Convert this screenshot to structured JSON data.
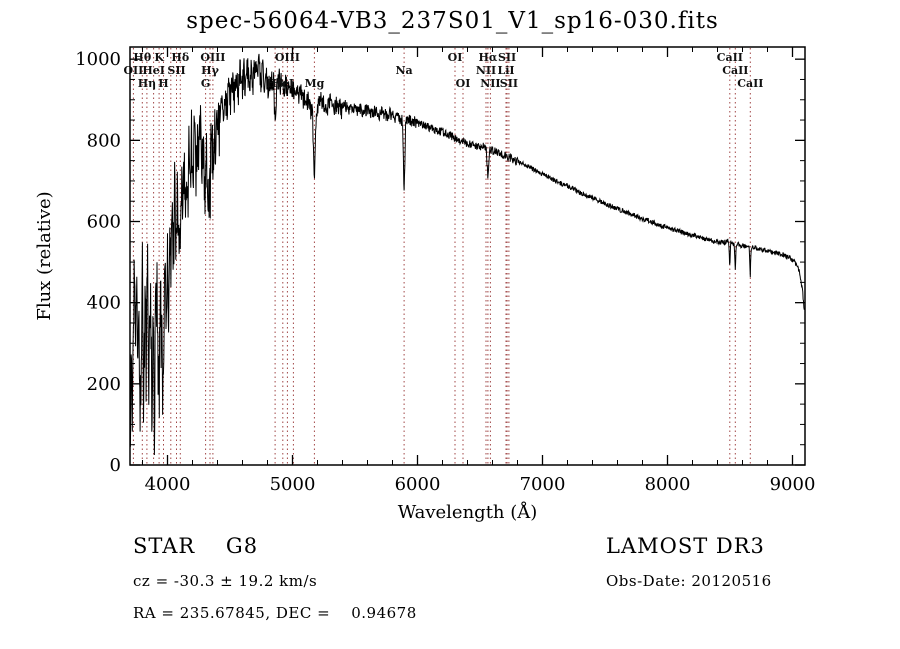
{
  "annotations": {
    "class_line": {
      "left": "STAR    G8",
      "right": "LAMOST DR3"
    },
    "info_line": {
      "left": "cz = -30.3 ± 19.2 km/s",
      "right": "Obs-Date: 20120516"
    },
    "coord_line": {
      "left": "RA = 235.67845, DEC =    0.94678"
    }
  },
  "chart_data": {
    "type": "line",
    "title": "spec-56064-VB3_237S01_V1_sp16-030.fits",
    "xlabel": "Wavelength (Å)",
    "ylabel": "Flux (relative)",
    "xlim": [
      3700,
      9100
    ],
    "ylim": [
      0,
      1030
    ],
    "xticks": [
      4000,
      5000,
      6000,
      7000,
      8000,
      9000
    ],
    "yticks": [
      0,
      200,
      400,
      600,
      800,
      1000
    ],
    "x_minor_step": 200,
    "y_minor_step": 50,
    "grid": false,
    "legend": "none",
    "line_color": "#000000",
    "marker_line_color": "#a04545",
    "spectral_lines": [
      {
        "label": "OII",
        "wavelength": 3727,
        "row": 2
      },
      {
        "label": "Hθ",
        "wavelength": 3798,
        "row": 1
      },
      {
        "label": "Hη",
        "wavelength": 3835,
        "row": 3
      },
      {
        "label": "HeI",
        "wavelength": 3889,
        "row": 2
      },
      {
        "label": "K",
        "wavelength": 3933,
        "row": 1
      },
      {
        "label": "H",
        "wavelength": 3968,
        "row": 3
      },
      {
        "label": "",
        "wavelength": 4026,
        "row": 2
      },
      {
        "label": "SII",
        "wavelength": 4072,
        "row": 2
      },
      {
        "label": "Hδ",
        "wavelength": 4102,
        "row": 1
      },
      {
        "label": "G",
        "wavelength": 4305,
        "row": 3
      },
      {
        "label": "Hγ",
        "wavelength": 4340,
        "row": 2
      },
      {
        "label": "OIII",
        "wavelength": 4363,
        "row": 1
      },
      {
        "label": "Hβ",
        "wavelength": 4861,
        "row": 3
      },
      {
        "label": "HeI",
        "wavelength": 4922,
        "row": 3
      },
      {
        "label": "OIII",
        "wavelength": 4959,
        "row": 1
      },
      {
        "label": "",
        "wavelength": 5007,
        "row": 1
      },
      {
        "label": "Mg",
        "wavelength": 5175,
        "row": 3
      },
      {
        "label": "Na",
        "wavelength": 5893,
        "row": 2
      },
      {
        "label": "OI",
        "wavelength": 6300,
        "row": 1
      },
      {
        "label": "OI",
        "wavelength": 6364,
        "row": 3
      },
      {
        "label": "NII",
        "wavelength": 6548,
        "row": 2
      },
      {
        "label": "Hα",
        "wavelength": 6563,
        "row": 1
      },
      {
        "label": "NII",
        "wavelength": 6583,
        "row": 3
      },
      {
        "label": "LiI",
        "wavelength": 6708,
        "row": 2
      },
      {
        "label": "SII",
        "wavelength": 6717,
        "row": 1
      },
      {
        "label": "SII",
        "wavelength": 6731,
        "row": 3
      },
      {
        "label": "CaII",
        "wavelength": 8498,
        "row": 1
      },
      {
        "label": "CaII",
        "wavelength": 8542,
        "row": 2
      },
      {
        "label": "CaII",
        "wavelength": 8662,
        "row": 3
      }
    ],
    "noise": {
      "seed": 12345,
      "step": 3,
      "regions": [
        {
          "from": 3700,
          "to": 4000,
          "amp": 110
        },
        {
          "from": 4000,
          "to": 4420,
          "amp": 80
        },
        {
          "from": 4420,
          "to": 4900,
          "amp": 38
        },
        {
          "from": 4900,
          "to": 5400,
          "amp": 25
        },
        {
          "from": 5400,
          "to": 6000,
          "amp": 15
        },
        {
          "from": 6000,
          "to": 6800,
          "amp": 10
        },
        {
          "from": 6800,
          "to": 9101,
          "amp": 6
        }
      ]
    },
    "spectrum": {
      "points": [
        [
          3700,
          30
        ],
        [
          3712,
          260
        ],
        [
          3722,
          120
        ],
        [
          3732,
          420
        ],
        [
          3742,
          300
        ],
        [
          3752,
          460
        ],
        [
          3762,
          180
        ],
        [
          3772,
          390
        ],
        [
          3782,
          120
        ],
        [
          3792,
          350
        ],
        [
          3800,
          470
        ],
        [
          3810,
          150
        ],
        [
          3820,
          420
        ],
        [
          3830,
          240
        ],
        [
          3840,
          500
        ],
        [
          3850,
          200
        ],
        [
          3862,
          440
        ],
        [
          3874,
          160
        ],
        [
          3886,
          360
        ],
        [
          3896,
          90
        ],
        [
          3906,
          380
        ],
        [
          3916,
          480
        ],
        [
          3926,
          220
        ],
        [
          3933,
          140
        ],
        [
          3941,
          420
        ],
        [
          3950,
          300
        ],
        [
          3960,
          240
        ],
        [
          3968,
          170
        ],
        [
          3978,
          430
        ],
        [
          3988,
          340
        ],
        [
          3998,
          520
        ],
        [
          4008,
          380
        ],
        [
          4018,
          600
        ],
        [
          4028,
          450
        ],
        [
          4038,
          640
        ],
        [
          4048,
          520
        ],
        [
          4058,
          690
        ],
        [
          4068,
          540
        ],
        [
          4078,
          700
        ],
        [
          4088,
          590
        ],
        [
          4098,
          520
        ],
        [
          4102,
          480
        ],
        [
          4112,
          680
        ],
        [
          4122,
          600
        ],
        [
          4132,
          730
        ],
        [
          4142,
          620
        ],
        [
          4152,
          760
        ],
        [
          4162,
          650
        ],
        [
          4172,
          780
        ],
        [
          4182,
          680
        ],
        [
          4192,
          800
        ],
        [
          4202,
          700
        ],
        [
          4215,
          810
        ],
        [
          4228,
          720
        ],
        [
          4240,
          830
        ],
        [
          4252,
          740
        ],
        [
          4264,
          840
        ],
        [
          4276,
          750
        ],
        [
          4288,
          820
        ],
        [
          4300,
          640
        ],
        [
          4312,
          780
        ],
        [
          4324,
          700
        ],
        [
          4340,
          660
        ],
        [
          4352,
          820
        ],
        [
          4364,
          740
        ],
        [
          4376,
          850
        ],
        [
          4388,
          780
        ],
        [
          4400,
          880
        ],
        [
          4415,
          820
        ],
        [
          4430,
          900
        ],
        [
          4445,
          850
        ],
        [
          4460,
          920
        ],
        [
          4475,
          870
        ],
        [
          4490,
          940
        ],
        [
          4505,
          890
        ],
        [
          4520,
          950
        ],
        [
          4535,
          900
        ],
        [
          4550,
          960
        ],
        [
          4565,
          910
        ],
        [
          4580,
          965
        ],
        [
          4595,
          920
        ],
        [
          4610,
          970
        ],
        [
          4625,
          930
        ],
        [
          4640,
          980
        ],
        [
          4655,
          940
        ],
        [
          4670,
          985
        ],
        [
          4685,
          945
        ],
        [
          4700,
          990
        ],
        [
          4715,
          950
        ],
        [
          4730,
          985
        ],
        [
          4745,
          945
        ],
        [
          4760,
          975
        ],
        [
          4775,
          940
        ],
        [
          4790,
          965
        ],
        [
          4805,
          935
        ],
        [
          4820,
          955
        ],
        [
          4835,
          930
        ],
        [
          4850,
          945
        ],
        [
          4861,
          830
        ],
        [
          4872,
          935
        ],
        [
          4885,
          955
        ],
        [
          4900,
          930
        ],
        [
          4915,
          950
        ],
        [
          4930,
          920
        ],
        [
          4945,
          945
        ],
        [
          4960,
          915
        ],
        [
          4975,
          940
        ],
        [
          4990,
          910
        ],
        [
          5005,
          935
        ],
        [
          5020,
          905
        ],
        [
          5035,
          925
        ],
        [
          5050,
          900
        ],
        [
          5065,
          920
        ],
        [
          5080,
          895
        ],
        [
          5095,
          915
        ],
        [
          5110,
          890
        ],
        [
          5125,
          905
        ],
        [
          5140,
          880
        ],
        [
          5160,
          860
        ],
        [
          5175,
          690
        ],
        [
          5190,
          860
        ],
        [
          5205,
          885
        ],
        [
          5220,
          900
        ],
        [
          5240,
          885
        ],
        [
          5260,
          895
        ],
        [
          5280,
          880
        ],
        [
          5300,
          895
        ],
        [
          5330,
          880
        ],
        [
          5360,
          890
        ],
        [
          5390,
          875
        ],
        [
          5420,
          888
        ],
        [
          5450,
          872
        ],
        [
          5480,
          885
        ],
        [
          5510,
          870
        ],
        [
          5540,
          880
        ],
        [
          5570,
          868
        ],
        [
          5600,
          878
        ],
        [
          5630,
          864
        ],
        [
          5660,
          874
        ],
        [
          5690,
          862
        ],
        [
          5720,
          870
        ],
        [
          5750,
          860
        ],
        [
          5780,
          866
        ],
        [
          5810,
          856
        ],
        [
          5840,
          862
        ],
        [
          5868,
          852
        ],
        [
          5880,
          845
        ],
        [
          5893,
          665
        ],
        [
          5906,
          845
        ],
        [
          5930,
          850
        ],
        [
          5960,
          845
        ],
        [
          5990,
          845
        ],
        [
          6020,
          840
        ],
        [
          6050,
          838
        ],
        [
          6080,
          834
        ],
        [
          6110,
          830
        ],
        [
          6140,
          827
        ],
        [
          6170,
          823
        ],
        [
          6200,
          820
        ],
        [
          6230,
          816
        ],
        [
          6260,
          812
        ],
        [
          6290,
          806
        ],
        [
          6320,
          802
        ],
        [
          6350,
          798
        ],
        [
          6380,
          795
        ],
        [
          6410,
          792
        ],
        [
          6440,
          788
        ],
        [
          6470,
          785
        ],
        [
          6500,
          782
        ],
        [
          6530,
          785
        ],
        [
          6550,
          780
        ],
        [
          6563,
          705
        ],
        [
          6576,
          778
        ],
        [
          6600,
          775
        ],
        [
          6630,
          772
        ],
        [
          6660,
          768
        ],
        [
          6690,
          764
        ],
        [
          6720,
          760
        ],
        [
          6750,
          756
        ],
        [
          6780,
          750
        ],
        [
          6810,
          746
        ],
        [
          6840,
          742
        ],
        [
          6870,
          737
        ],
        [
          6900,
          733
        ],
        [
          6930,
          728
        ],
        [
          6960,
          723
        ],
        [
          6990,
          718
        ],
        [
          7030,
          712
        ],
        [
          7070,
          706
        ],
        [
          7110,
          700
        ],
        [
          7150,
          694
        ],
        [
          7200,
          687
        ],
        [
          7250,
          680
        ],
        [
          7300,
          672
        ],
        [
          7350,
          665
        ],
        [
          7400,
          658
        ],
        [
          7450,
          651
        ],
        [
          7500,
          644
        ],
        [
          7550,
          638
        ],
        [
          7600,
          631
        ],
        [
          7650,
          625
        ],
        [
          7700,
          619
        ],
        [
          7750,
          613
        ],
        [
          7800,
          607
        ],
        [
          7850,
          601
        ],
        [
          7900,
          596
        ],
        [
          7950,
          590
        ],
        [
          8000,
          585
        ],
        [
          8050,
          580
        ],
        [
          8100,
          575
        ],
        [
          8150,
          570
        ],
        [
          8200,
          565
        ],
        [
          8250,
          561
        ],
        [
          8300,
          557
        ],
        [
          8350,
          553
        ],
        [
          8400,
          550
        ],
        [
          8450,
          548
        ],
        [
          8475,
          552
        ],
        [
          8490,
          550
        ],
        [
          8498,
          485
        ],
        [
          8506,
          548
        ],
        [
          8520,
          546
        ],
        [
          8534,
          545
        ],
        [
          8542,
          476
        ],
        [
          8550,
          544
        ],
        [
          8570,
          542
        ],
        [
          8600,
          540
        ],
        [
          8630,
          539
        ],
        [
          8654,
          538
        ],
        [
          8662,
          466
        ],
        [
          8670,
          537
        ],
        [
          8700,
          535
        ],
        [
          8740,
          532
        ],
        [
          8780,
          529
        ],
        [
          8820,
          526
        ],
        [
          8860,
          523
        ],
        [
          8900,
          520
        ],
        [
          8940,
          515
        ],
        [
          8970,
          512
        ],
        [
          9000,
          505
        ],
        [
          9030,
          495
        ],
        [
          9060,
          470
        ],
        [
          9080,
          430
        ],
        [
          9095,
          380
        ]
      ]
    }
  }
}
